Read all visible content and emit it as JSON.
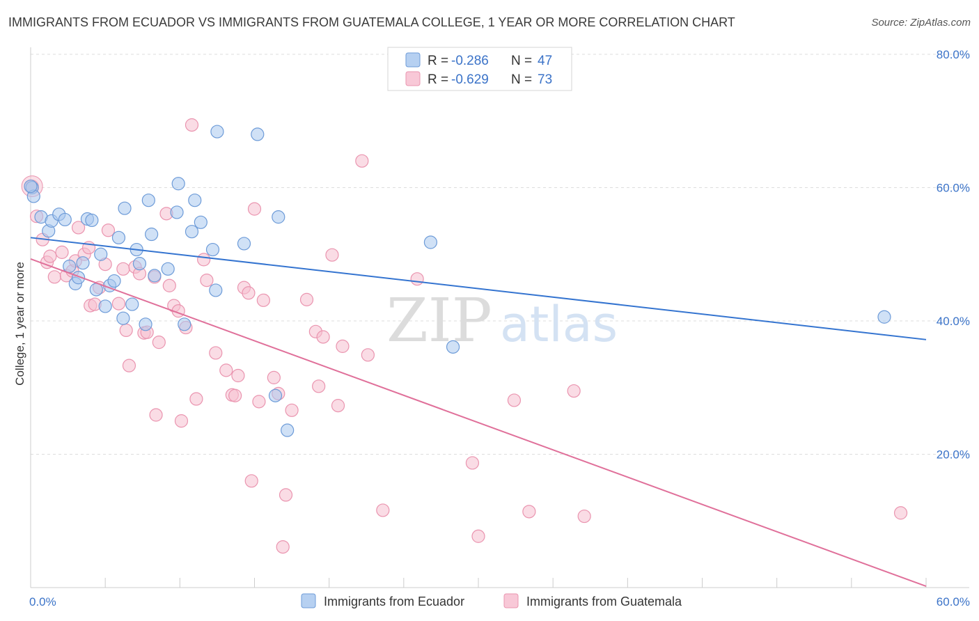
{
  "header": {
    "title": "IMMIGRANTS FROM ECUADOR VS IMMIGRANTS FROM GUATEMALA COLLEGE, 1 YEAR OR MORE CORRELATION CHART",
    "source": "Source: ZipAtlas.com"
  },
  "legend": {
    "ecuador": {
      "r_label": "R = ",
      "r_value": "-0.286",
      "n_label": "N = ",
      "n_value": "47"
    },
    "guatemala": {
      "r_label": "R = ",
      "r_value": "-0.629",
      "n_label": "N = ",
      "n_value": "73"
    }
  },
  "watermark": {
    "zip": "ZIP",
    "atlas": "atlas"
  },
  "colors": {
    "ecuador_fill": "#a9c8ef",
    "ecuador_stroke": "#6d9bd8",
    "ecuador_line": "#3474d0",
    "guatemala_fill": "#f6c0d0",
    "guatemala_stroke": "#ea94af",
    "guatemala_line": "#e0709a",
    "tick_label": "#3b73c8",
    "grid": "#dddddd"
  },
  "chart_data": {
    "type": "scatter",
    "title": "IMMIGRANTS FROM ECUADOR VS IMMIGRANTS FROM GUATEMALA COLLEGE, 1 YEAR OR MORE CORRELATION CHART",
    "xlabel": "",
    "ylabel": "College, 1 year or more",
    "xlim": [
      0,
      60
    ],
    "ylim": [
      0,
      80
    ],
    "x_tick_labels": [
      {
        "value": 0,
        "label": "0.0%"
      },
      {
        "value": 60,
        "label": "60.0%"
      }
    ],
    "y_tick_labels": [
      {
        "value": 20,
        "label": "20.0%"
      },
      {
        "value": 40,
        "label": "40.0%"
      },
      {
        "value": 60,
        "label": "60.0%"
      },
      {
        "value": 80,
        "label": "80.0%"
      }
    ],
    "grid": true,
    "legend_position": "top-center",
    "series": [
      {
        "name": "Immigrants from Ecuador",
        "key": "ecuador",
        "trend": [
          [
            0,
            52.5
          ],
          [
            60,
            37.2
          ]
        ],
        "points": [
          [
            0.1,
            60.0
          ],
          [
            0.2,
            58.7
          ],
          [
            0.7,
            55.6
          ],
          [
            1.2,
            53.5
          ],
          [
            1.4,
            55.0
          ],
          [
            1.9,
            56.0
          ],
          [
            2.3,
            55.2
          ],
          [
            2.6,
            48.2
          ],
          [
            3.0,
            45.6
          ],
          [
            3.2,
            46.5
          ],
          [
            3.5,
            48.7
          ],
          [
            3.8,
            55.3
          ],
          [
            4.1,
            55.1
          ],
          [
            4.4,
            44.7
          ],
          [
            4.7,
            50.0
          ],
          [
            5.0,
            42.2
          ],
          [
            5.3,
            45.3
          ],
          [
            5.6,
            46.0
          ],
          [
            5.9,
            52.5
          ],
          [
            6.2,
            40.4
          ],
          [
            6.3,
            56.9
          ],
          [
            6.8,
            42.5
          ],
          [
            7.1,
            50.7
          ],
          [
            7.3,
            48.6
          ],
          [
            7.7,
            39.5
          ],
          [
            7.9,
            58.1
          ],
          [
            8.1,
            53.0
          ],
          [
            8.3,
            46.8
          ],
          [
            9.2,
            47.8
          ],
          [
            9.8,
            56.3
          ],
          [
            9.9,
            60.6
          ],
          [
            10.3,
            39.5
          ],
          [
            10.8,
            53.4
          ],
          [
            11.0,
            58.1
          ],
          [
            11.4,
            54.8
          ],
          [
            12.2,
            50.7
          ],
          [
            12.4,
            44.6
          ],
          [
            12.5,
            68.4
          ],
          [
            14.3,
            51.6
          ],
          [
            15.2,
            68.0
          ],
          [
            16.4,
            28.8
          ],
          [
            16.6,
            55.6
          ],
          [
            17.2,
            23.6
          ],
          [
            26.8,
            51.8
          ],
          [
            28.3,
            36.1
          ],
          [
            57.2,
            40.6
          ],
          [
            0.0,
            60.2
          ]
        ]
      },
      {
        "name": "Immigrants from Guatemala",
        "key": "guatemala",
        "trend": [
          [
            0,
            49.3
          ],
          [
            60,
            0.2
          ]
        ],
        "points": [
          [
            0.1,
            60.2
          ],
          [
            0.4,
            55.7
          ],
          [
            0.8,
            52.2
          ],
          [
            1.1,
            48.8
          ],
          [
            1.3,
            49.7
          ],
          [
            1.6,
            46.6
          ],
          [
            2.1,
            50.3
          ],
          [
            2.4,
            46.8
          ],
          [
            2.8,
            47.5
          ],
          [
            3.0,
            49.0
          ],
          [
            3.2,
            54.0
          ],
          [
            3.6,
            50.0
          ],
          [
            3.9,
            51.0
          ],
          [
            4.0,
            42.3
          ],
          [
            4.3,
            42.5
          ],
          [
            4.6,
            45.0
          ],
          [
            5.0,
            48.5
          ],
          [
            5.2,
            53.6
          ],
          [
            5.9,
            42.6
          ],
          [
            6.2,
            47.8
          ],
          [
            6.4,
            38.6
          ],
          [
            6.6,
            33.3
          ],
          [
            7.0,
            48.1
          ],
          [
            7.3,
            47.1
          ],
          [
            7.6,
            38.2
          ],
          [
            7.8,
            38.3
          ],
          [
            8.3,
            46.6
          ],
          [
            8.4,
            25.9
          ],
          [
            8.6,
            36.8
          ],
          [
            9.1,
            56.1
          ],
          [
            9.3,
            45.3
          ],
          [
            9.6,
            42.3
          ],
          [
            9.9,
            41.5
          ],
          [
            10.1,
            25.0
          ],
          [
            10.4,
            39.0
          ],
          [
            10.8,
            69.4
          ],
          [
            11.1,
            28.3
          ],
          [
            11.6,
            49.2
          ],
          [
            11.8,
            46.1
          ],
          [
            12.4,
            35.2
          ],
          [
            13.1,
            32.6
          ],
          [
            13.5,
            28.9
          ],
          [
            13.7,
            28.8
          ],
          [
            13.9,
            31.8
          ],
          [
            14.3,
            45.0
          ],
          [
            14.6,
            44.2
          ],
          [
            14.8,
            16.0
          ],
          [
            15.0,
            56.8
          ],
          [
            15.3,
            27.9
          ],
          [
            15.6,
            43.1
          ],
          [
            16.3,
            31.5
          ],
          [
            16.6,
            29.1
          ],
          [
            16.9,
            6.1
          ],
          [
            17.1,
            13.9
          ],
          [
            17.5,
            26.6
          ],
          [
            18.5,
            43.2
          ],
          [
            19.1,
            38.4
          ],
          [
            19.3,
            30.2
          ],
          [
            19.6,
            37.6
          ],
          [
            20.2,
            49.9
          ],
          [
            20.6,
            27.3
          ],
          [
            20.9,
            36.2
          ],
          [
            22.2,
            64.0
          ],
          [
            22.6,
            34.9
          ],
          [
            23.6,
            11.6
          ],
          [
            25.9,
            46.3
          ],
          [
            29.6,
            18.7
          ],
          [
            30.0,
            7.7
          ],
          [
            32.4,
            28.1
          ],
          [
            33.4,
            11.4
          ],
          [
            36.4,
            29.5
          ],
          [
            37.1,
            10.7
          ],
          [
            58.3,
            11.2
          ]
        ]
      }
    ],
    "bottom_legend": [
      "Immigrants from Ecuador",
      "Immigrants from Guatemala"
    ]
  }
}
